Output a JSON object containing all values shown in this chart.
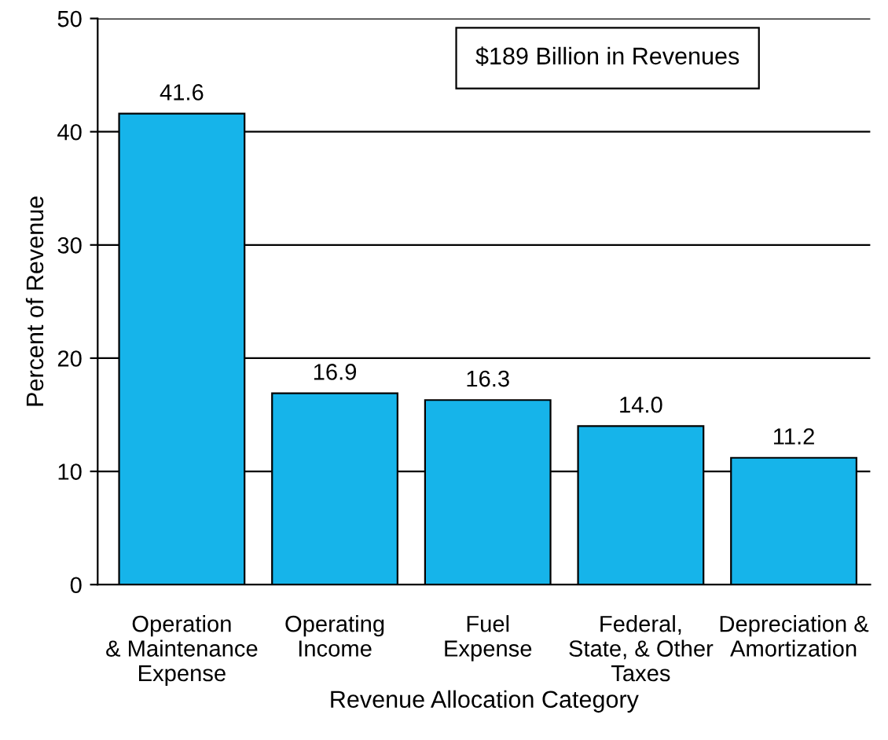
{
  "chart_data": {
    "type": "bar",
    "xlabel": "Revenue Allocation Category",
    "ylabel": "Percent of Revenue",
    "categories": [
      "Operation\n& Maintenance\nExpense",
      "Operating\nIncome",
      "Fuel\nExpense",
      "Federal,\nState, & Other\nTaxes",
      "Depreciation &\nAmortization"
    ],
    "values": [
      41.6,
      16.9,
      16.3,
      14.0,
      11.2
    ],
    "value_labels": [
      "41.6",
      "16.9",
      "16.3",
      "14.0",
      "11.2"
    ],
    "color": "#16b4ea",
    "ylim": [
      0,
      50
    ],
    "yticks": [
      0,
      10,
      20,
      30,
      40,
      50
    ],
    "grid": "y",
    "annotations": [
      "$189 Billion in Revenues"
    ]
  }
}
